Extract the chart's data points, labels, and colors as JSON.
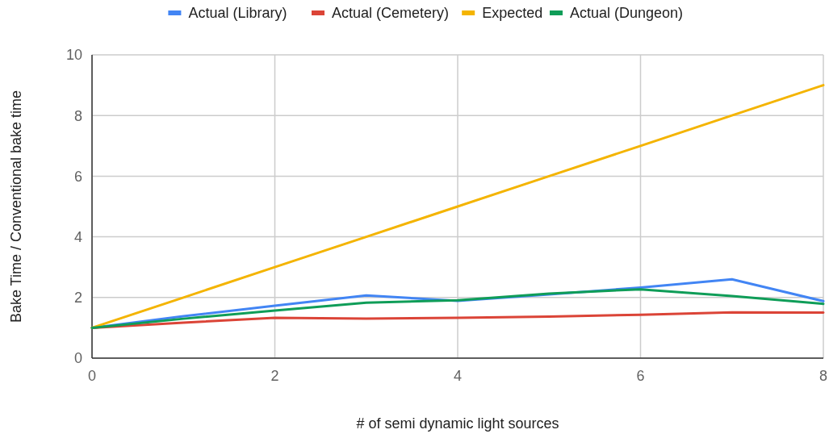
{
  "chart_data": {
    "type": "line",
    "xlabel": "# of semi dynamic light sources",
    "ylabel": "Bake Time / Conventional bake time",
    "x": [
      0,
      1,
      2,
      3,
      4,
      5,
      6,
      7,
      8
    ],
    "series": [
      {
        "name": "Actual (Library)",
        "color": "#4285f4",
        "values": [
          1.0,
          1.38,
          1.73,
          2.07,
          1.89,
          2.1,
          2.33,
          2.6,
          1.88
        ]
      },
      {
        "name": "Actual (Cemetery)",
        "color": "#db4437",
        "values": [
          1.0,
          1.17,
          1.33,
          1.3,
          1.33,
          1.37,
          1.43,
          1.51,
          1.5
        ]
      },
      {
        "name": "Expected",
        "color": "#f4b400",
        "values": [
          1,
          2,
          3,
          4,
          5,
          6,
          7,
          8,
          9
        ]
      },
      {
        "name": "Actual (Dungeon)",
        "color": "#0f9d58",
        "values": [
          1.0,
          1.3,
          1.57,
          1.83,
          1.91,
          2.13,
          2.27,
          2.05,
          1.79
        ]
      }
    ],
    "xlim": [
      0,
      8
    ],
    "xticks": [
      0,
      2,
      4,
      6,
      8
    ],
    "ylim": [
      0,
      10
    ],
    "yticks": [
      0,
      2,
      4,
      6,
      8,
      10
    ],
    "grid": true,
    "legend": "top",
    "marker": "none",
    "line_style": "solid"
  }
}
